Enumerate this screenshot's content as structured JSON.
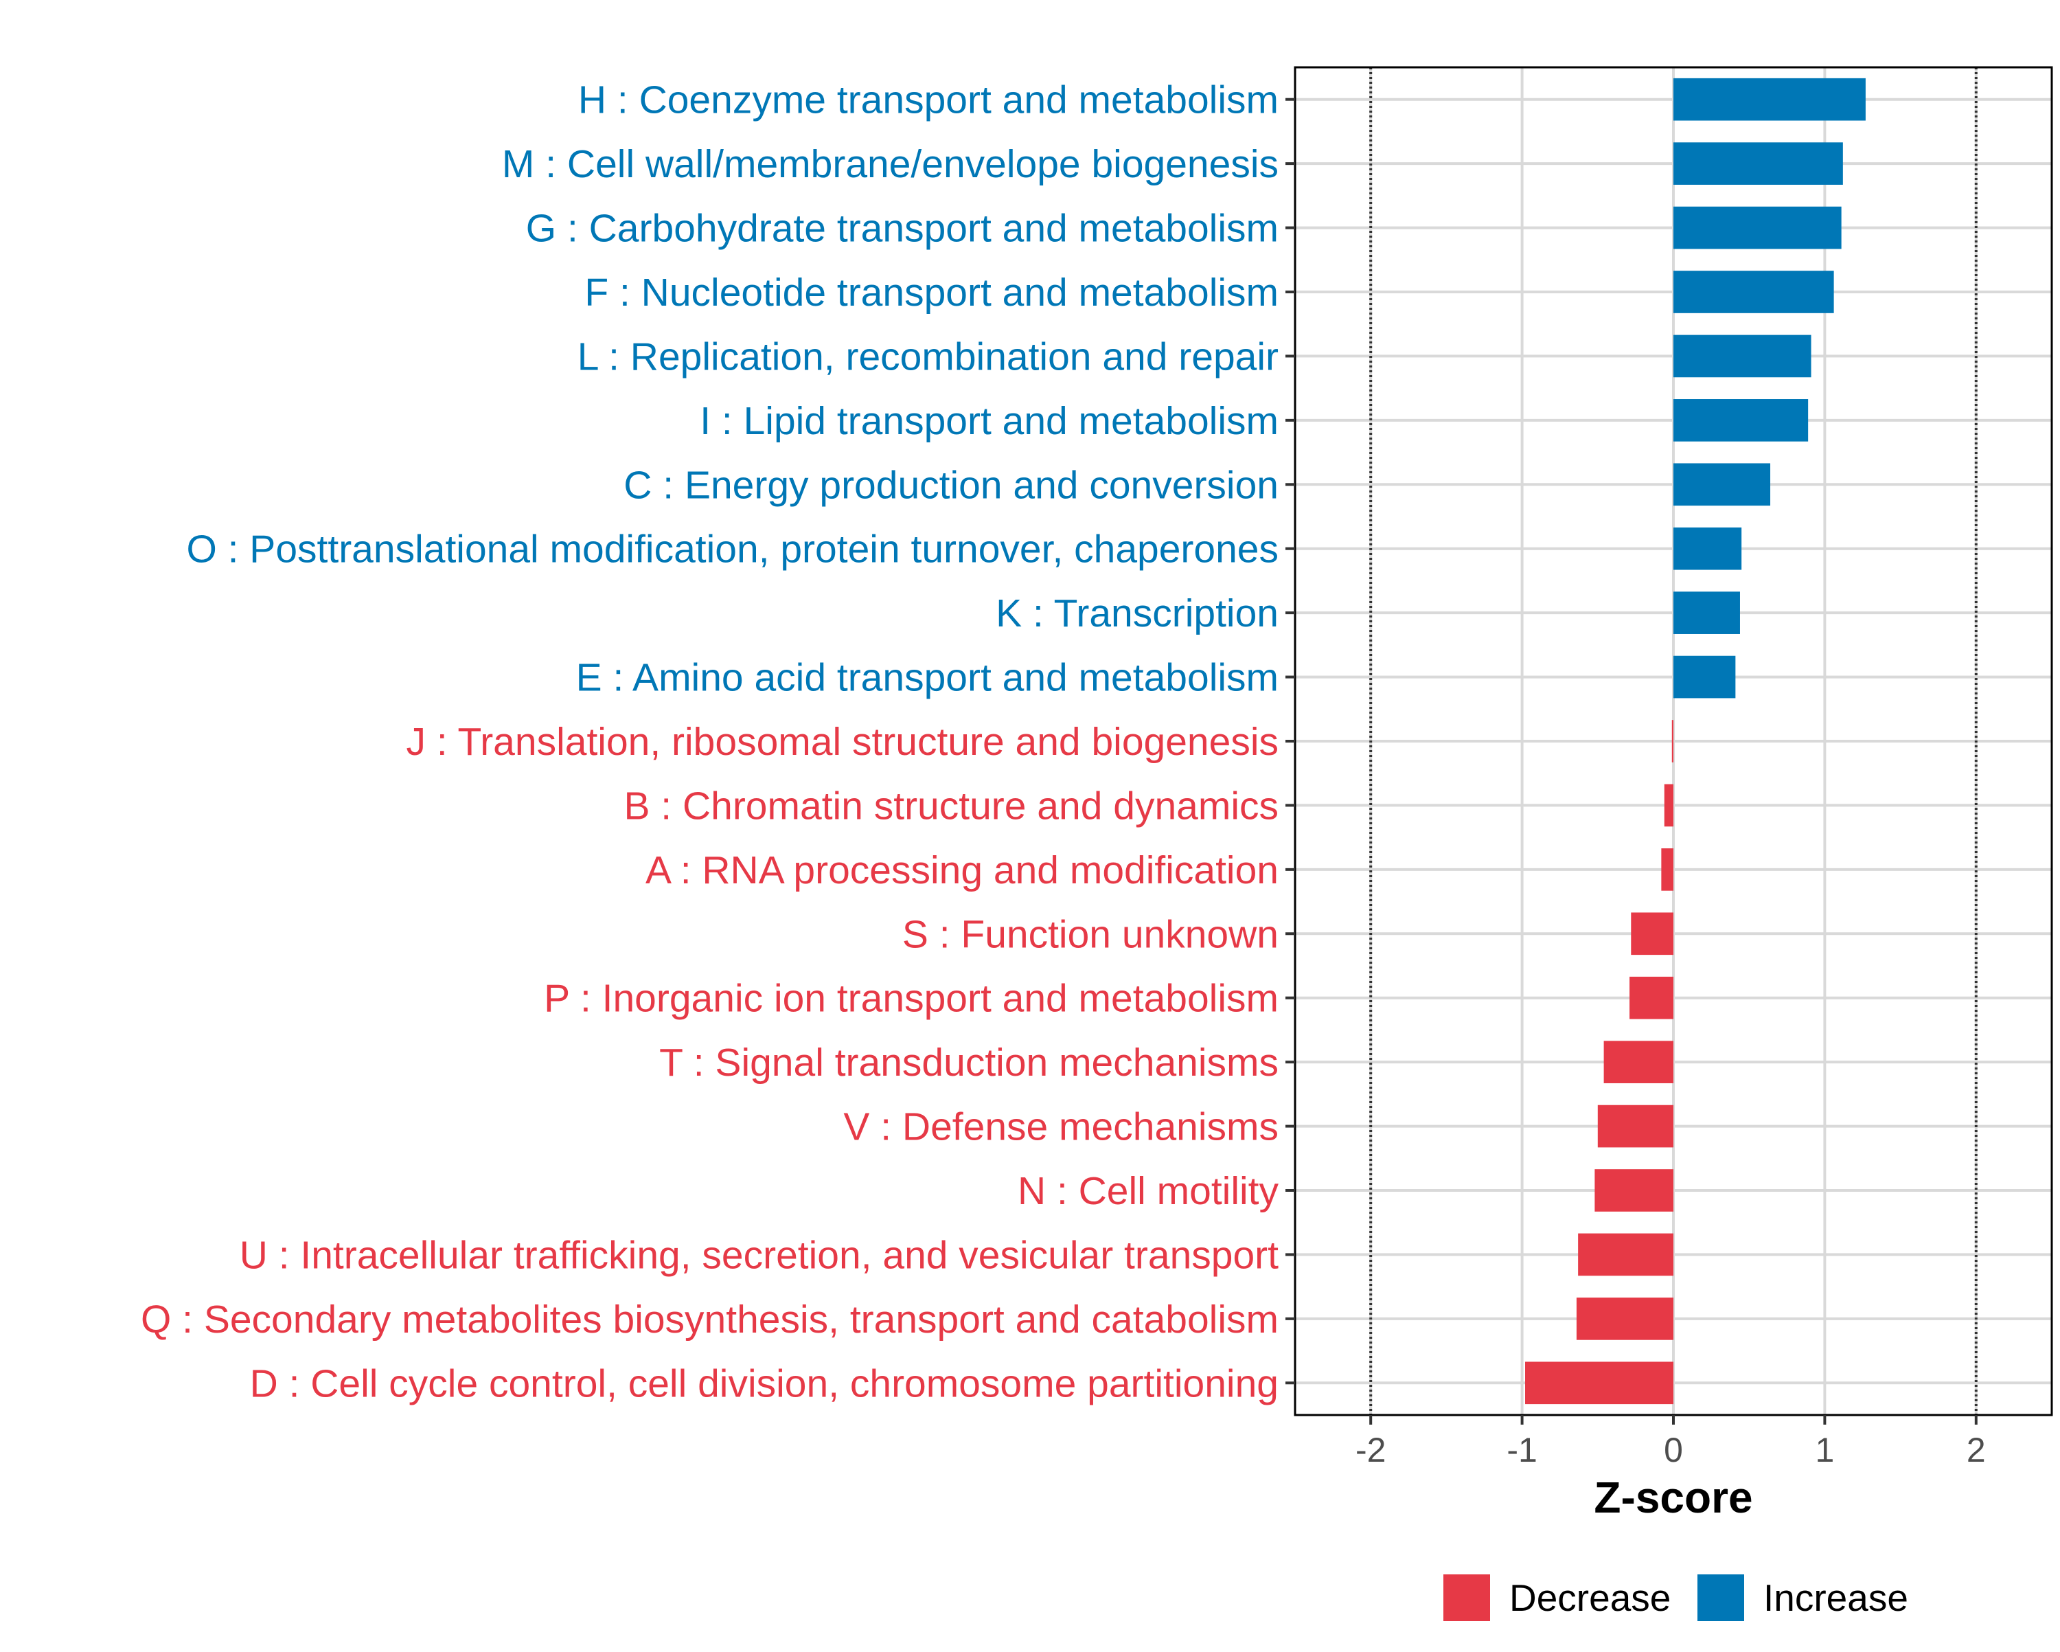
{
  "colors": {
    "increase": "#0077b6",
    "decrease": "#e63946",
    "grid": "#d9d9d9",
    "panel_border": "#000000",
    "reference_line": "#333333"
  },
  "chart_data": {
    "type": "bar",
    "orientation": "horizontal",
    "title": "",
    "xlabel": "Z-score",
    "ylabel": "",
    "xlim": [
      -2.5,
      2.5
    ],
    "xticks": [
      -2,
      -1,
      0,
      1,
      2
    ],
    "xtick_labels": [
      "-2",
      "-1",
      "0",
      "1",
      "2"
    ],
    "reference_lines": [
      -2,
      2
    ],
    "grid": true,
    "legend": {
      "position": "bottom",
      "entries": [
        {
          "label": "Decrease",
          "color_key": "decrease"
        },
        {
          "label": "Increase",
          "color_key": "increase"
        }
      ]
    },
    "categories": [
      "H : Coenzyme transport and metabolism",
      "M : Cell wall/membrane/envelope biogenesis",
      "G : Carbohydrate transport and metabolism",
      "F : Nucleotide transport and metabolism",
      "L : Replication, recombination and repair",
      "I : Lipid transport and metabolism",
      "C : Energy production and conversion",
      "O : Posttranslational modification, protein turnover, chaperones",
      "K : Transcription",
      "E : Amino acid transport and metabolism",
      "J : Translation, ribosomal structure and biogenesis",
      "B : Chromatin structure and dynamics",
      "A : RNA processing and modification",
      "S : Function unknown",
      "P : Inorganic ion transport and metabolism",
      "T : Signal transduction mechanisms",
      "V : Defense mechanisms",
      "N : Cell motility",
      "U : Intracellular trafficking, secretion, and vesicular transport",
      "Q : Secondary metabolites biosynthesis, transport and catabolism",
      "D : Cell cycle control, cell division, chromosome partitioning"
    ],
    "values": [
      1.27,
      1.12,
      1.11,
      1.06,
      0.91,
      0.89,
      0.64,
      0.45,
      0.44,
      0.41,
      -0.01,
      -0.06,
      -0.08,
      -0.28,
      -0.29,
      -0.46,
      -0.5,
      -0.52,
      -0.63,
      -0.64,
      -0.98
    ],
    "groups": [
      "Increase",
      "Increase",
      "Increase",
      "Increase",
      "Increase",
      "Increase",
      "Increase",
      "Increase",
      "Increase",
      "Increase",
      "Decrease",
      "Decrease",
      "Decrease",
      "Decrease",
      "Decrease",
      "Decrease",
      "Decrease",
      "Decrease",
      "Decrease",
      "Decrease",
      "Decrease"
    ]
  }
}
